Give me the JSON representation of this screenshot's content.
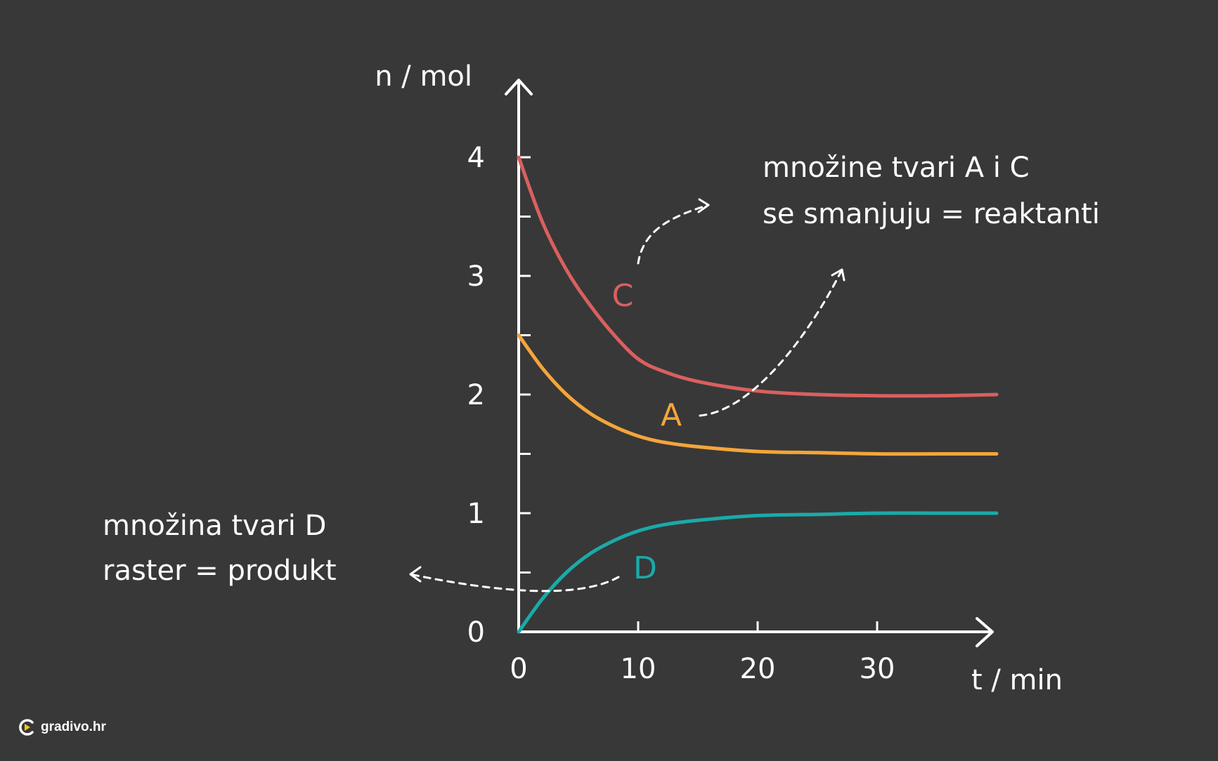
{
  "chart_data": {
    "type": "line",
    "xlabel": "t / min",
    "ylabel": "n / mol",
    "xlim": [
      0,
      40
    ],
    "ylim": [
      0,
      4
    ],
    "x_ticks": [
      0,
      10,
      20,
      30
    ],
    "y_ticks": [
      0,
      0.5,
      1,
      1.5,
      2,
      2.5,
      3,
      3.5,
      4
    ],
    "y_tick_labels": [
      "0",
      "1",
      "2",
      "3",
      "4"
    ],
    "y_tick_label_values": [
      0,
      1,
      2,
      3,
      4
    ],
    "grid": false,
    "series": [
      {
        "name": "C",
        "color": "#d9605f",
        "x": [
          0,
          2,
          4,
          6,
          8,
          10,
          12,
          15,
          20,
          25,
          30,
          35,
          40
        ],
        "y": [
          4.0,
          3.45,
          3.05,
          2.75,
          2.5,
          2.3,
          2.2,
          2.11,
          2.03,
          2.0,
          1.99,
          1.99,
          2.0
        ]
      },
      {
        "name": "A",
        "color": "#f4a53a",
        "x": [
          0,
          2,
          4,
          6,
          8,
          10,
          12,
          15,
          20,
          25,
          30,
          35,
          40
        ],
        "y": [
          2.5,
          2.22,
          2.0,
          1.84,
          1.73,
          1.65,
          1.6,
          1.56,
          1.52,
          1.51,
          1.5,
          1.5,
          1.5
        ]
      },
      {
        "name": "D",
        "color": "#1aaaa9",
        "x": [
          0,
          2,
          4,
          6,
          8,
          10,
          12,
          15,
          20,
          25,
          30,
          35,
          40
        ],
        "y": [
          0.0,
          0.28,
          0.5,
          0.66,
          0.77,
          0.85,
          0.9,
          0.94,
          0.98,
          0.99,
          1.0,
          1.0,
          1.0
        ]
      }
    ],
    "annotations": {
      "reactants_line1": "množine tvari A i C",
      "reactants_line2": "se smanjuju = reaktanti",
      "product_line1": "množina tvari D",
      "product_line2": "raster = produkt"
    }
  },
  "brand": {
    "name": "gradivo.hr",
    "accent": "#f5c518"
  },
  "colors": {
    "background": "#383838",
    "axis": "#ffffff"
  }
}
